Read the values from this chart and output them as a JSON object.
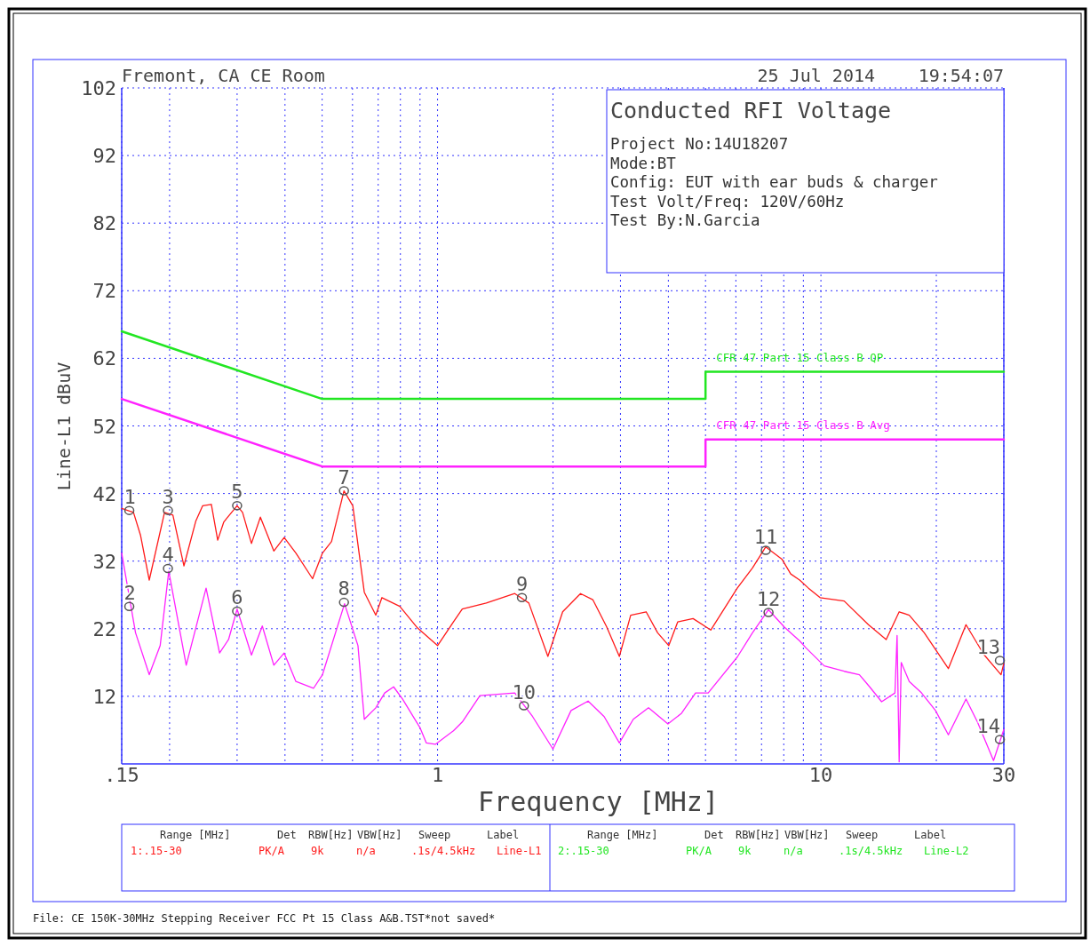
{
  "chart_data": {
    "type": "line",
    "title": "Conducted RFI Voltage",
    "xlabel": "Frequency [MHz]",
    "ylabel": "Line-L1 dBuV",
    "log": "x",
    "grid": true,
    "xlim": [
      0.15,
      30
    ],
    "ylim": [
      2,
      102
    ],
    "xticks": [
      {
        "value": 0.15,
        "label": ".15"
      },
      {
        "value": 0.2,
        "label": null
      },
      {
        "value": 0.3,
        "label": null
      },
      {
        "value": 0.4,
        "label": null
      },
      {
        "value": 0.5,
        "label": null
      },
      {
        "value": 0.6,
        "label": null
      },
      {
        "value": 0.7,
        "label": null
      },
      {
        "value": 0.8,
        "label": null
      },
      {
        "value": 0.9,
        "label": null
      },
      1,
      {
        "value": 2,
        "label": null
      },
      {
        "value": 3,
        "label": null
      },
      {
        "value": 4,
        "label": null
      },
      {
        "value": 5,
        "label": null
      },
      {
        "value": 6,
        "label": null
      },
      {
        "value": 7,
        "label": null
      },
      {
        "value": 8,
        "label": null
      },
      {
        "value": 9,
        "label": null
      },
      10,
      {
        "value": 20,
        "label": null
      },
      30
    ],
    "yticks": [
      12,
      22,
      32,
      42,
      52,
      62,
      72,
      82,
      92,
      102
    ],
    "series": [
      {
        "color": "#ff1a1a",
        "x": [
          0.15,
          0.161,
          0.168,
          0.177,
          0.194,
          0.204,
          0.218,
          0.234,
          0.244,
          0.257,
          0.267,
          0.277,
          0.3,
          0.31,
          0.327,
          0.345,
          0.374,
          0.398,
          0.427,
          0.472,
          0.501,
          0.529,
          0.57,
          0.601,
          0.644,
          0.69,
          0.716,
          0.797,
          0.887,
          1.0,
          1.1,
          1.16,
          1.34,
          1.59,
          1.73,
          1.94,
          2.12,
          2.36,
          2.54,
          2.76,
          2.98,
          3.19,
          3.5,
          3.75,
          4.01,
          4.23,
          4.64,
          5.16,
          6.05,
          6.63,
          7.18,
          7.91,
          8.34,
          8.8,
          9.28,
          9.95,
          11.5,
          13.3,
          14.8,
          16.0,
          17.0,
          18.6,
          21.5,
          23.9,
          26.6,
          29.5,
          30
        ],
        "values": [
          39.8,
          39.2,
          35.8,
          29.2,
          39.2,
          38.8,
          31.3,
          37.9,
          40.2,
          40.4,
          35.1,
          37.8,
          40.2,
          39.2,
          34.6,
          38.5,
          33.5,
          35.5,
          33.2,
          29.4,
          33.2,
          34.9,
          42.4,
          40.2,
          27.4,
          24.0,
          26.6,
          25.3,
          22.1,
          19.5,
          23.0,
          24.9,
          25.8,
          27.2,
          25.8,
          17.9,
          24.5,
          27.2,
          26.3,
          22.3,
          17.9,
          24.0,
          24.5,
          21.4,
          19.5,
          23.0,
          23.5,
          21.8,
          28.0,
          31.0,
          34.1,
          32.3,
          30.1,
          29.2,
          28.0,
          26.6,
          26.1,
          22.6,
          20.4,
          24.5,
          24.0,
          21.4,
          16.1,
          22.6,
          18.2,
          15.2,
          16.9
        ]
      },
      {
        "color": "#ff22ff",
        "x": [
          0.15,
          0.163,
          0.177,
          0.189,
          0.199,
          0.221,
          0.249,
          0.27,
          0.285,
          0.3,
          0.327,
          0.349,
          0.374,
          0.398,
          0.427,
          0.475,
          0.501,
          0.572,
          0.62,
          0.644,
          0.69,
          0.728,
          0.768,
          0.81,
          0.901,
          0.935,
          0.987,
          1.1,
          1.16,
          1.29,
          1.59,
          1.77,
          2.0,
          2.23,
          2.47,
          2.72,
          2.98,
          3.24,
          3.55,
          3.99,
          4.33,
          4.71,
          5.08,
          6.05,
          6.63,
          7.3,
          8.04,
          8.8,
          9.13,
          10.2,
          11.5,
          12.6,
          13.4,
          14.4,
          15.6,
          15.8,
          16.0,
          16.2,
          17.0,
          18.3,
          19.9,
          21.5,
          23.9,
          25.6,
          28.2,
          30
        ],
        "values": [
          33.2,
          21.4,
          15.2,
          19.5,
          30.5,
          16.6,
          28.0,
          18.4,
          20.4,
          24.9,
          18.1,
          22.4,
          16.6,
          18.4,
          14.2,
          13.2,
          15.2,
          25.7,
          19.5,
          8.6,
          10.3,
          12.5,
          13.4,
          11.6,
          7.3,
          5.1,
          4.9,
          6.9,
          8.2,
          12.1,
          12.5,
          9.0,
          4.2,
          9.9,
          11.3,
          9.0,
          5.1,
          8.6,
          10.3,
          7.9,
          9.5,
          12.5,
          12.5,
          17.8,
          21.4,
          24.8,
          22.2,
          20.2,
          19.2,
          16.5,
          15.7,
          15.2,
          13.4,
          11.2,
          12.5,
          21.0,
          2.3,
          17.0,
          14.2,
          12.5,
          9.9,
          6.3,
          11.6,
          8.2,
          2.5,
          7.1
        ]
      },
      {
        "name": "CFR 47 Part 15 Class B QP",
        "color": "#22e622",
        "x": [
          0.15,
          0.5,
          5,
          5,
          30
        ],
        "values": [
          66,
          56,
          56,
          60,
          60
        ]
      },
      {
        "name": "CFR 47 Part 15 Class B Avg",
        "color": "#ff22ff",
        "x": [
          0.15,
          0.5,
          5,
          5,
          30
        ],
        "values": [
          56,
          46,
          46,
          50,
          50
        ]
      }
    ],
    "annotations": [
      "Fremont, CA CE Room",
      "25 Jul 2014",
      "19:54:07",
      "Project No:14U18207",
      "Mode:BT",
      "Config: EUT with ear buds & charger",
      "Test Volt/Freq: 120V/60Hz",
      "Test By:N.Garcia",
      "Range [MHz]",
      "Det",
      "RBW[Hz]",
      "VBW[Hz]",
      "Sweep",
      "Label",
      "1:.15-30",
      "PK/A",
      "9k",
      "n/a",
      ".1s/4.5kHz",
      "Line-L1",
      "Range [MHz]",
      "Det",
      "RBW[Hz]",
      "VBW[Hz]",
      "Sweep",
      "Label",
      "2:.15-30",
      "PK/A",
      "9k",
      "n/a",
      ".1s/4.5kHz",
      "Line-L2",
      "File: CE 150K-30MHz Stepping Receiver FCC Pt 15 Class A&B.TST*not saved*",
      {
        "text": "1",
        "x": 0.157,
        "y": 39.5
      },
      {
        "text": "2",
        "x": 0.157,
        "y": 25.3
      },
      {
        "text": "3",
        "x": 0.198,
        "y": 39.5
      },
      {
        "text": "4",
        "x": 0.198,
        "y": 30.9
      },
      {
        "text": "5",
        "x": 0.3,
        "y": 40.2
      },
      {
        "text": "6",
        "x": 0.3,
        "y": 24.6
      },
      {
        "text": "7",
        "x": 0.57,
        "y": 42.4
      },
      {
        "text": "8",
        "x": 0.57,
        "y": 25.9
      },
      {
        "text": "9",
        "x": 1.66,
        "y": 26.6
      },
      {
        "text": "10",
        "x": 1.68,
        "y": 10.6
      },
      {
        "text": "11",
        "x": 7.18,
        "y": 33.6
      },
      {
        "text": "12",
        "x": 7.3,
        "y": 24.4
      },
      {
        "text": "13",
        "x": 29.3,
        "y": 17.3
      },
      {
        "text": "14",
        "x": 29.3,
        "y": 5.6
      }
    ]
  }
}
